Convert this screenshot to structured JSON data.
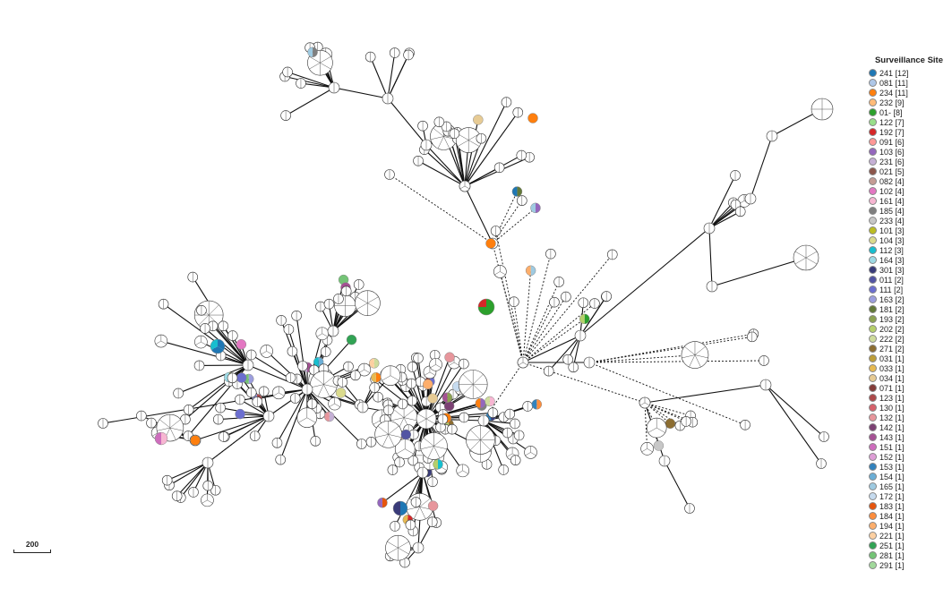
{
  "legend": {
    "title": "Surveillance Site",
    "items": [
      {
        "label": "241 [12]",
        "color": "#1f77b4"
      },
      {
        "label": "081 [11]",
        "color": "#aec7e8"
      },
      {
        "label": "234 [11]",
        "color": "#ff7f0e"
      },
      {
        "label": "232 [9]",
        "color": "#ffbb78"
      },
      {
        "label": "01- [8]",
        "color": "#2ca02c"
      },
      {
        "label": "122 [7]",
        "color": "#98df8a"
      },
      {
        "label": "192 [7]",
        "color": "#d62728"
      },
      {
        "label": "091 [6]",
        "color": "#ff9896"
      },
      {
        "label": "103 [6]",
        "color": "#9467bd"
      },
      {
        "label": "231 [6]",
        "color": "#c5b0d5"
      },
      {
        "label": "021 [5]",
        "color": "#8c564b"
      },
      {
        "label": "082 [4]",
        "color": "#c49c94"
      },
      {
        "label": "102 [4]",
        "color": "#e377c2"
      },
      {
        "label": "161 [4]",
        "color": "#f7b6d2"
      },
      {
        "label": "185 [4]",
        "color": "#7f7f7f"
      },
      {
        "label": "233 [4]",
        "color": "#c7c7c7"
      },
      {
        "label": "101 [3]",
        "color": "#bcbd22"
      },
      {
        "label": "104 [3]",
        "color": "#dbdb8d"
      },
      {
        "label": "112 [3]",
        "color": "#17becf"
      },
      {
        "label": "164 [3]",
        "color": "#9edae5"
      },
      {
        "label": "301 [3]",
        "color": "#393b79"
      },
      {
        "label": "011 [2]",
        "color": "#5254a3"
      },
      {
        "label": "111 [2]",
        "color": "#6b6ecf"
      },
      {
        "label": "163 [2]",
        "color": "#9c9ede"
      },
      {
        "label": "181 [2]",
        "color": "#637939"
      },
      {
        "label": "193 [2]",
        "color": "#8ca252"
      },
      {
        "label": "202 [2]",
        "color": "#b5cf6b"
      },
      {
        "label": "222 [2]",
        "color": "#cedb9c"
      },
      {
        "label": "271 [2]",
        "color": "#8c6d31"
      },
      {
        "label": "031 [1]",
        "color": "#bd9e39"
      },
      {
        "label": "033 [1]",
        "color": "#e7ba52"
      },
      {
        "label": "034 [1]",
        "color": "#e7cb94"
      },
      {
        "label": "071 [1]",
        "color": "#843c39"
      },
      {
        "label": "123 [1]",
        "color": "#ad494a"
      },
      {
        "label": "130 [1]",
        "color": "#d6616b"
      },
      {
        "label": "132 [1]",
        "color": "#e7969c"
      },
      {
        "label": "142 [1]",
        "color": "#7b4173"
      },
      {
        "label": "143 [1]",
        "color": "#a55194"
      },
      {
        "label": "151 [1]",
        "color": "#ce6dbd"
      },
      {
        "label": "152 [1]",
        "color": "#de9ed6"
      },
      {
        "label": "153 [1]",
        "color": "#3182bd"
      },
      {
        "label": "154 [1]",
        "color": "#6baed6"
      },
      {
        "label": "165 [1]",
        "color": "#9ecae1"
      },
      {
        "label": "172 [1]",
        "color": "#c6dbef"
      },
      {
        "label": "183 [1]",
        "color": "#e6550d"
      },
      {
        "label": "184 [1]",
        "color": "#fd8d3c"
      },
      {
        "label": "194 [1]",
        "color": "#fdae6b"
      },
      {
        "label": "221 [1]",
        "color": "#fdd0a2"
      },
      {
        "label": "251 [1]",
        "color": "#31a354"
      },
      {
        "label": "281 [1]",
        "color": "#74c476"
      },
      {
        "label": "291 [1]",
        "color": "#a1d99b"
      }
    ]
  },
  "scale_bar": {
    "label": "200"
  },
  "node_style": {
    "fill": "#ffffff",
    "stroke": "#333333",
    "edge_color": "#111111"
  }
}
